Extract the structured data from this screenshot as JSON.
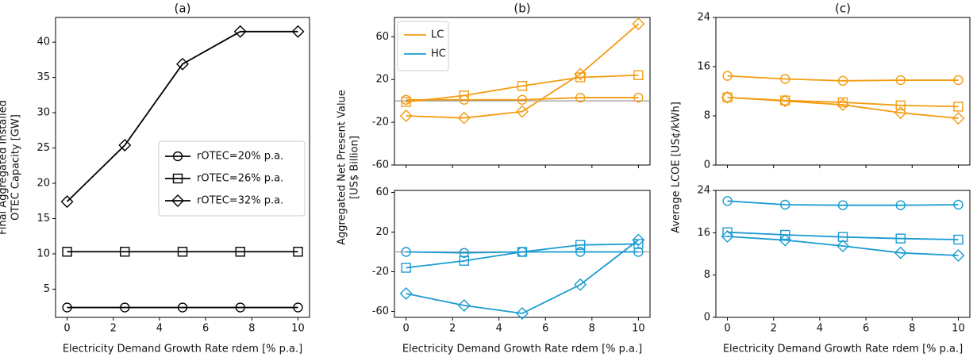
{
  "chart_data": [
    {
      "type": "line",
      "title": "(a)",
      "ylabel": [
        "Final Aggregated Installed",
        "OTEC Capacity [GW]"
      ],
      "xlabel": "Electricity Demand Growth Rate rdem [% p.a.]",
      "x": [
        0,
        2.5,
        5,
        7.5,
        10
      ],
      "xlim": [
        -0.5,
        10.5
      ],
      "xticks": [
        0,
        2,
        4,
        6,
        8,
        10
      ],
      "show_xtick_labels": true,
      "ylim": [
        1,
        43.5
      ],
      "yticks": [
        5,
        10,
        15,
        20,
        25,
        30,
        35,
        40
      ],
      "legend": "center right",
      "series": [
        {
          "name": "rOTEC=20% p.a.",
          "color": "#000000",
          "marker": "circle",
          "values": [
            2.4,
            2.4,
            2.4,
            2.4,
            2.4
          ]
        },
        {
          "name": "rOTEC=26% p.a.",
          "color": "#000000",
          "marker": "square",
          "values": [
            10.3,
            10.3,
            10.3,
            10.3,
            10.3
          ]
        },
        {
          "name": "rOTEC=32% p.a.",
          "color": "#000000",
          "marker": "diamond",
          "values": [
            17.4,
            25.4,
            36.9,
            41.5,
            41.5
          ]
        }
      ]
    },
    {
      "type": "line",
      "title": "(b)",
      "ylabel": [
        "Aggregated Net Present Value",
        "[US$ Billion]"
      ],
      "x": [
        0,
        2.5,
        5,
        7.5,
        10
      ],
      "xlim": [
        -0.5,
        10.5
      ],
      "xticks": [
        0,
        2,
        4,
        6,
        8,
        10
      ],
      "show_xtick_labels": false,
      "ylim": [
        -60,
        78
      ],
      "yticks": [
        -60,
        -20,
        20,
        60
      ],
      "hline": 0,
      "hline_color": "#999999",
      "legend_entries": [
        {
          "name": "LC",
          "color": "#f39c12"
        },
        {
          "name": "HC",
          "color": "#1a9bd1"
        }
      ],
      "legend": "upper left",
      "series": [
        {
          "color": "#f39c12",
          "marker": "circle",
          "values": [
            1,
            1,
            1,
            3,
            3
          ]
        },
        {
          "color": "#f39c12",
          "marker": "square",
          "values": [
            -1,
            5,
            14,
            22,
            24
          ]
        },
        {
          "color": "#f39c12",
          "marker": "diamond",
          "values": [
            -14,
            -16,
            -10,
            25,
            72
          ]
        }
      ]
    },
    {
      "type": "line",
      "xlabel": "Electricity Demand Growth Rate rdem [% p.a.]",
      "x": [
        0,
        2.5,
        5,
        7.5,
        10
      ],
      "xlim": [
        -0.5,
        10.5
      ],
      "xticks": [
        0,
        2,
        4,
        6,
        8,
        10
      ],
      "show_xtick_labels": true,
      "ylim": [
        -66,
        62
      ],
      "yticks": [
        -60,
        -20,
        20,
        60
      ],
      "hline": 0,
      "hline_color": "#999999",
      "series": [
        {
          "color": "#1a9bd1",
          "marker": "circle",
          "values": [
            0,
            -1,
            0,
            0,
            0
          ]
        },
        {
          "color": "#1a9bd1",
          "marker": "square",
          "values": [
            -16,
            -9,
            0,
            7,
            8
          ]
        },
        {
          "color": "#1a9bd1",
          "marker": "diamond",
          "values": [
            -42,
            -54,
            -62,
            -33,
            12
          ]
        }
      ]
    },
    {
      "type": "line",
      "title": "(c)",
      "ylabel": [
        "Average LCOE [US¢/kWh]"
      ],
      "x": [
        0,
        2.5,
        5,
        7.5,
        10
      ],
      "xlim": [
        -0.5,
        10.5
      ],
      "xticks": [
        0,
        2,
        4,
        6,
        8,
        10
      ],
      "show_xtick_labels": false,
      "ylim": [
        0,
        24
      ],
      "yticks": [
        0,
        8,
        16,
        24
      ],
      "series": [
        {
          "color": "#f39c12",
          "marker": "circle",
          "values": [
            14.5,
            14,
            13.7,
            13.8,
            13.8
          ]
        },
        {
          "color": "#f39c12",
          "marker": "square",
          "values": [
            11,
            10.5,
            10.2,
            9.7,
            9.5
          ]
        },
        {
          "color": "#f39c12",
          "marker": "diamond",
          "values": [
            11,
            10.4,
            9.8,
            8.5,
            7.6
          ]
        }
      ]
    },
    {
      "type": "line",
      "xlabel": "Electricity Demand Growth Rate rdem [% p.a.]",
      "x": [
        0,
        2.5,
        5,
        7.5,
        10
      ],
      "xlim": [
        -0.5,
        10.5
      ],
      "xticks": [
        0,
        2,
        4,
        6,
        8,
        10
      ],
      "show_xtick_labels": true,
      "ylim": [
        0,
        24
      ],
      "yticks": [
        0,
        8,
        16,
        24
      ],
      "series": [
        {
          "color": "#1a9bd1",
          "marker": "circle",
          "values": [
            22,
            21.3,
            21.2,
            21.2,
            21.3
          ]
        },
        {
          "color": "#1a9bd1",
          "marker": "square",
          "values": [
            16.1,
            15.6,
            15.2,
            14.9,
            14.7
          ]
        },
        {
          "color": "#1a9bd1",
          "marker": "diamond",
          "values": [
            15.3,
            14.6,
            13.5,
            12.2,
            11.7
          ]
        }
      ]
    }
  ]
}
